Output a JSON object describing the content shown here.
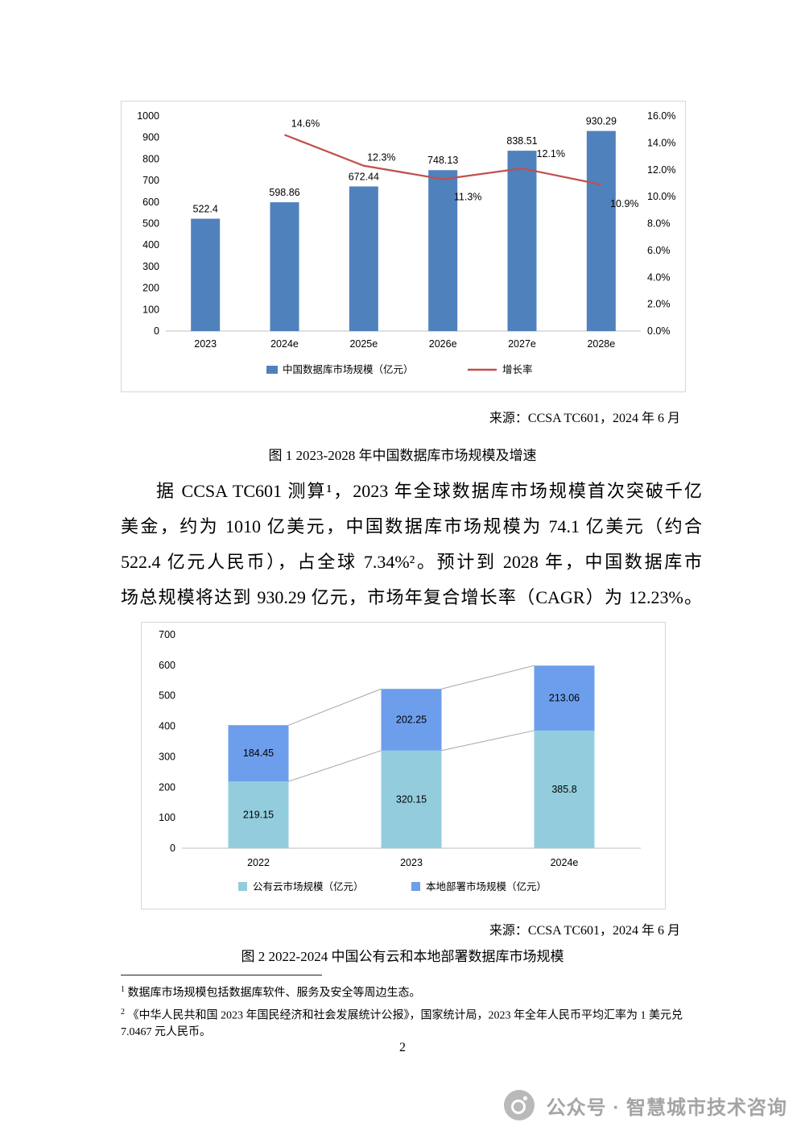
{
  "figure1": {
    "source": "来源：CCSA TC601，2024 年 6 月",
    "caption": "图 1 2023-2028 年中国数据库市场规模及增速",
    "chart_data": {
      "type": "bar",
      "subtype": "bar-line-combo",
      "categories": [
        "2023",
        "2024e",
        "2025e",
        "2026e",
        "2027e",
        "2028e"
      ],
      "series": [
        {
          "name": "中国数据库市场规模（亿元）",
          "type": "bar",
          "axis": "left",
          "color": "#4f81bd",
          "values": [
            522.4,
            598.86,
            672.44,
            748.13,
            838.51,
            930.29
          ],
          "labels": [
            "522.4",
            "598.86",
            "672.44",
            "748.13",
            "838.51",
            "930.29"
          ]
        },
        {
          "name": "增长率",
          "type": "line",
          "axis": "right",
          "color": "#c0504d",
          "start_category_index": 1,
          "values": [
            14.6,
            12.3,
            11.3,
            12.1,
            10.9
          ],
          "labels": [
            "14.6%",
            "12.3%",
            "11.3%",
            "12.1%",
            "10.9%"
          ]
        }
      ],
      "y_left": {
        "min": 0,
        "max": 1000,
        "step": 100
      },
      "y_right": {
        "min": 0,
        "max": 16,
        "step": 2,
        "format": "percent-one-decimal"
      },
      "grid": false,
      "legend_position": "bottom"
    }
  },
  "paragraph": {
    "lines": [
      "据 CCSA TC601 测算¹，2023 年全球数据库市场规模首次突破千亿",
      "美金，约为 1010 亿美元，中国数据库市场规模为 74.1 亿美元（约合",
      "522.4 亿元人民币），占全球 7.34%²。预计到 2028 年，中国数据库市",
      "场总规模将达到 930.29 亿元，市场年复合增长率（CAGR）为 12.23%。"
    ]
  },
  "figure2": {
    "source": "来源：CCSA TC601，2024 年 6 月",
    "caption": "图 2 2022-2024 中国公有云和本地部署数据库市场规模",
    "chart_data": {
      "type": "bar",
      "subtype": "stacked-bar",
      "categories": [
        "2022",
        "2023",
        "2024e"
      ],
      "series": [
        {
          "name": "公有云市场规模（亿元）",
          "color": "#93cddd",
          "values": [
            219.15,
            320.15,
            385.8
          ],
          "labels": [
            "219.15",
            "320.15",
            "385.8"
          ]
        },
        {
          "name": "本地部署市场规模（亿元）",
          "color": "#6d9eeb",
          "values": [
            184.45,
            202.25,
            213.06
          ],
          "labels": [
            "184.45",
            "202.25",
            "213.06"
          ]
        }
      ],
      "ylim": [
        0,
        700
      ],
      "y_step": 100,
      "connector_line_color": "#a6a6a6",
      "grid": false,
      "legend_position": "bottom"
    }
  },
  "footnotes": [
    {
      "marker": "1",
      "text": "数据库市场规模包括数据库软件、服务及安全等周边生态。"
    },
    {
      "marker": "2",
      "text": "《中华人民共和国 2023 年国民经济和社会发展统计公报》，国家统计局，2023 年全年人民币平均汇率为 1 美元兑 7.0467 元人民币。"
    }
  ],
  "page_number": "2",
  "watermark": {
    "text": "公众号 · 智慧城市技术咨询"
  }
}
